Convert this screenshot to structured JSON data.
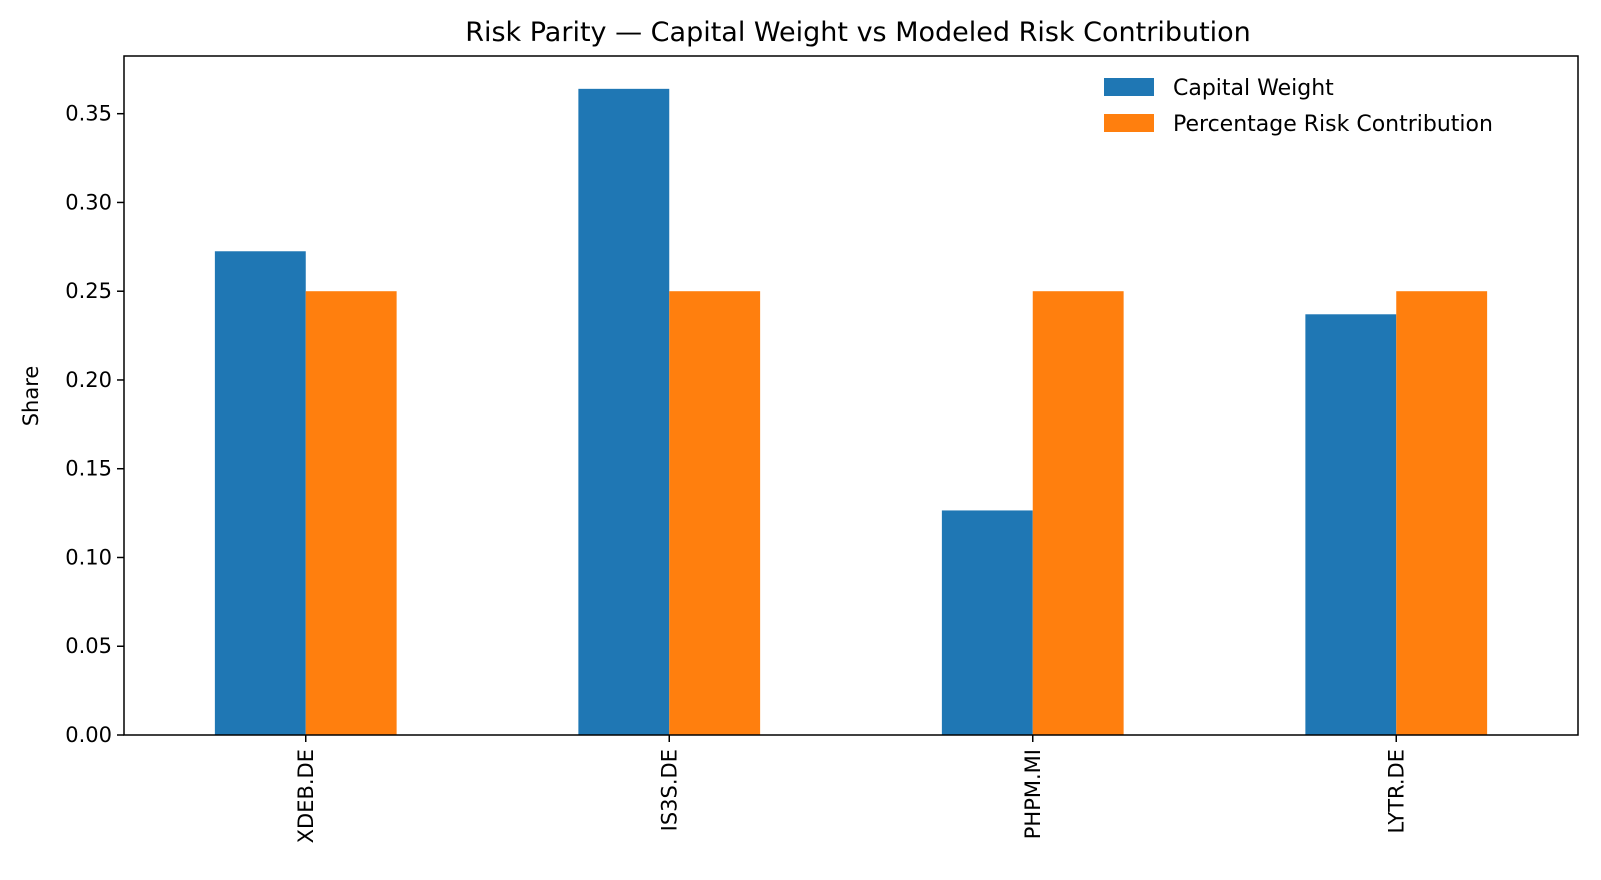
{
  "chart_data": {
    "type": "bar",
    "title": "Risk Parity — Capital Weight vs Modeled Risk Contribution",
    "xlabel": "",
    "ylabel": "Share",
    "ylim": [
      0,
      0.3825
    ],
    "yticks": [
      "0.00",
      "0.05",
      "0.10",
      "0.15",
      "0.20",
      "0.25",
      "0.30",
      "0.35"
    ],
    "categories": [
      "XDEB.DE",
      "IS3S.DE",
      "PHPM.MI",
      "LYTR.DE"
    ],
    "series": [
      {
        "name": "Capital Weight",
        "color": "#1f77b4",
        "values": [
          0.2725,
          0.364,
          0.1265,
          0.237
        ]
      },
      {
        "name": "Percentage Risk Contribution",
        "color": "#ff7f0e",
        "values": [
          0.25,
          0.25,
          0.25,
          0.25
        ]
      }
    ],
    "grid": false,
    "legend": "top-right"
  }
}
